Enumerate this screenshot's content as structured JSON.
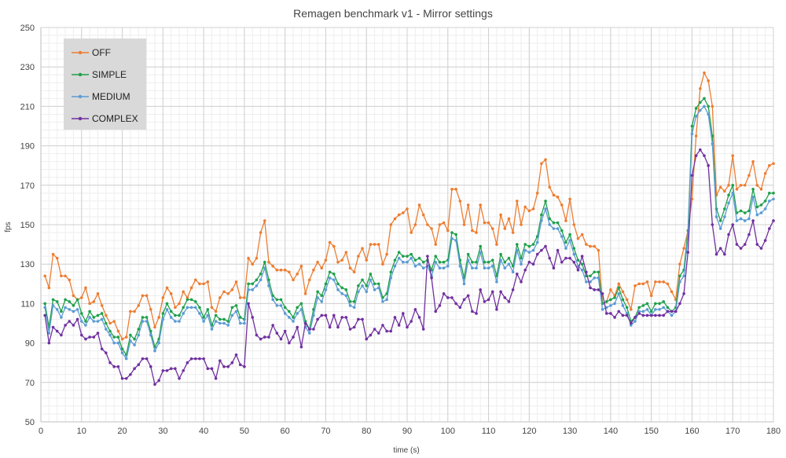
{
  "chart_data": {
    "type": "line",
    "title": "Remagen benchmark v1 - Mirror settings",
    "xlabel": "time (s)",
    "ylabel": "fps",
    "xlim": [
      0,
      180
    ],
    "ylim": [
      50,
      250
    ],
    "xticks": [
      0,
      10,
      20,
      30,
      40,
      50,
      60,
      70,
      80,
      90,
      100,
      110,
      120,
      130,
      140,
      150,
      160,
      170,
      180
    ],
    "yticks": [
      50,
      70,
      90,
      110,
      130,
      150,
      170,
      190,
      210,
      230,
      250
    ],
    "x": [
      1,
      2,
      3,
      4,
      5,
      6,
      7,
      8,
      9,
      10,
      11,
      12,
      13,
      14,
      15,
      16,
      17,
      18,
      19,
      20,
      21,
      22,
      23,
      24,
      25,
      26,
      27,
      28,
      29,
      30,
      31,
      32,
      33,
      34,
      35,
      36,
      37,
      38,
      39,
      40,
      41,
      42,
      43,
      44,
      45,
      46,
      47,
      48,
      49,
      50,
      51,
      52,
      53,
      54,
      55,
      56,
      57,
      58,
      59,
      60,
      61,
      62,
      63,
      64,
      65,
      66,
      67,
      68,
      69,
      70,
      71,
      72,
      73,
      74,
      75,
      76,
      77,
      78,
      79,
      80,
      81,
      82,
      83,
      84,
      85,
      86,
      87,
      88,
      89,
      90,
      91,
      92,
      93,
      94,
      95,
      96,
      97,
      98,
      99,
      100,
      101,
      102,
      103,
      104,
      105,
      106,
      107,
      108,
      109,
      110,
      111,
      112,
      113,
      114,
      115,
      116,
      117,
      118,
      119,
      120,
      121,
      122,
      123,
      124,
      125,
      126,
      127,
      128,
      129,
      130,
      131,
      132,
      133,
      134,
      135,
      136,
      137,
      138,
      139,
      140,
      141,
      142,
      143,
      144,
      145,
      146,
      147,
      148,
      149,
      150,
      151,
      152,
      153,
      154,
      155,
      156,
      157,
      158,
      159,
      160,
      161,
      162,
      163,
      164,
      165,
      166,
      167,
      168,
      169,
      170,
      171,
      172,
      173,
      174,
      175,
      176,
      177,
      178,
      179,
      180
    ],
    "series": [
      {
        "name": "OFF",
        "color": "#ED7D31",
        "values": [
          124,
          118,
          135,
          133,
          124,
          124,
          122,
          114,
          112,
          113,
          118,
          110,
          111,
          115,
          109,
          104,
          100,
          101,
          96,
          92,
          93,
          106,
          106,
          109,
          114,
          114,
          107,
          98,
          103,
          113,
          118,
          115,
          108,
          110,
          116,
          113,
          118,
          122,
          120,
          120,
          121,
          108,
          106,
          113,
          116,
          115,
          117,
          121,
          113,
          113,
          133,
          130,
          133,
          146,
          152,
          131,
          129,
          127,
          127,
          127,
          126,
          122,
          125,
          129,
          115,
          122,
          127,
          131,
          128,
          132,
          141,
          139,
          131,
          132,
          136,
          128,
          126,
          134,
          138,
          132,
          140,
          140,
          140,
          130,
          135,
          150,
          153,
          155,
          156,
          158,
          146,
          150,
          160,
          155,
          150,
          148,
          140,
          150,
          151,
          147,
          168,
          168,
          162,
          150,
          160,
          147,
          146,
          160,
          151,
          151,
          148,
          140,
          155,
          148,
          153,
          146,
          162,
          150,
          159,
          157,
          158,
          166,
          181,
          183,
          169,
          165,
          164,
          160,
          152,
          163,
          150,
          143,
          145,
          140,
          139,
          139,
          137,
          110,
          111,
          117,
          114,
          120,
          116,
          112,
          107,
          119,
          120,
          120,
          121,
          114,
          121,
          121,
          121,
          120,
          116,
          112,
          130,
          138,
          147,
          163,
          195,
          219,
          227,
          223,
          210,
          165,
          169,
          167,
          170,
          185,
          168,
          170,
          170,
          175,
          182,
          170,
          168,
          176,
          180,
          181
        ]
      },
      {
        "name": "SIMPLE",
        "color": "#1EA04A",
        "values": [
          110,
          98,
          112,
          111,
          106,
          112,
          111,
          109,
          112,
          105,
          101,
          106,
          103,
          104,
          105,
          100,
          96,
          93,
          93,
          87,
          84,
          94,
          92,
          97,
          103,
          103,
          96,
          88,
          92,
          105,
          110,
          106,
          104,
          104,
          108,
          112,
          112,
          111,
          108,
          103,
          107,
          99,
          104,
          102,
          102,
          101,
          108,
          109,
          103,
          102,
          120,
          120,
          122,
          125,
          131,
          122,
          114,
          112,
          112,
          108,
          106,
          103,
          108,
          110,
          101,
          97,
          107,
          116,
          114,
          120,
          126,
          125,
          120,
          118,
          117,
          111,
          111,
          119,
          122,
          119,
          125,
          120,
          120,
          113,
          115,
          126,
          132,
          136,
          134,
          134,
          135,
          132,
          133,
          131,
          132,
          127,
          134,
          131,
          131,
          132,
          146,
          145,
          132,
          123,
          135,
          131,
          131,
          139,
          131,
          131,
          132,
          124,
          135,
          131,
          133,
          129,
          140,
          133,
          140,
          139,
          140,
          144,
          155,
          162,
          153,
          151,
          151,
          147,
          141,
          145,
          138,
          132,
          130,
          124,
          124,
          126,
          126,
          110,
          111,
          112,
          113,
          118,
          112,
          108,
          101,
          103,
          108,
          109,
          110,
          106,
          110,
          110,
          111,
          108,
          106,
          108,
          124,
          127,
          147,
          200,
          209,
          212,
          214,
          210,
          195,
          158,
          152,
          158,
          165,
          170,
          156,
          157,
          156,
          157,
          168,
          159,
          160,
          162,
          166,
          166
        ]
      },
      {
        "name": "MEDIUM",
        "color": "#5B9BD5",
        "values": [
          108,
          95,
          109,
          107,
          103,
          108,
          107,
          106,
          107,
          101,
          99,
          103,
          101,
          101,
          102,
          97,
          94,
          90,
          90,
          85,
          82,
          91,
          89,
          94,
          101,
          101,
          94,
          86,
          90,
          102,
          107,
          103,
          101,
          101,
          105,
          108,
          108,
          108,
          105,
          101,
          104,
          97,
          101,
          100,
          100,
          99,
          104,
          106,
          100,
          100,
          117,
          117,
          119,
          122,
          128,
          119,
          112,
          109,
          109,
          105,
          103,
          101,
          105,
          107,
          98,
          95,
          104,
          113,
          111,
          117,
          123,
          122,
          117,
          115,
          114,
          109,
          108,
          116,
          119,
          116,
          122,
          117,
          118,
          111,
          112,
          123,
          129,
          133,
          131,
          131,
          133,
          129,
          130,
          128,
          129,
          124,
          131,
          128,
          128,
          129,
          143,
          142,
          129,
          120,
          132,
          128,
          128,
          136,
          128,
          128,
          129,
          121,
          132,
          128,
          130,
          126,
          137,
          130,
          137,
          136,
          137,
          141,
          152,
          158,
          150,
          148,
          148,
          144,
          138,
          142,
          135,
          129,
          127,
          121,
          121,
          123,
          123,
          107,
          108,
          109,
          110,
          115,
          109,
          105,
          99,
          101,
          106,
          106,
          107,
          104,
          107,
          107,
          108,
          106,
          104,
          106,
          121,
          124,
          144,
          196,
          205,
          208,
          210,
          206,
          191,
          154,
          148,
          154,
          161,
          166,
          152,
          153,
          152,
          153,
          164,
          155,
          156,
          158,
          162,
          163
        ]
      },
      {
        "name": "COMPLEX",
        "color": "#7030A0",
        "values": [
          104,
          90,
          98,
          96,
          94,
          99,
          101,
          99,
          102,
          94,
          92,
          93,
          93,
          95,
          87,
          85,
          80,
          78,
          78,
          72,
          72,
          74,
          77,
          79,
          82,
          82,
          78,
          69,
          71,
          76,
          76,
          77,
          77,
          72,
          76,
          80,
          82,
          82,
          82,
          82,
          77,
          77,
          72,
          81,
          78,
          78,
          80,
          84,
          79,
          78,
          110,
          103,
          94,
          92,
          93,
          93,
          99,
          95,
          92,
          96,
          90,
          93,
          98,
          88,
          100,
          97,
          97,
          102,
          104,
          104,
          98,
          104,
          98,
          103,
          103,
          97,
          98,
          102,
          102,
          92,
          94,
          97,
          95,
          99,
          96,
          96,
          103,
          99,
          105,
          98,
          101,
          107,
          103,
          97,
          134,
          123,
          106,
          109,
          115,
          113,
          113,
          110,
          108,
          112,
          114,
          106,
          105,
          117,
          111,
          112,
          116,
          107,
          116,
          113,
          111,
          117,
          125,
          121,
          127,
          131,
          130,
          135,
          137,
          139,
          133,
          128,
          137,
          131,
          133,
          133,
          131,
          127,
          134,
          126,
          118,
          117,
          117,
          115,
          105,
          105,
          103,
          106,
          104,
          104,
          100,
          103,
          105,
          104,
          104,
          104,
          104,
          104,
          104,
          106,
          106,
          106,
          110,
          115,
          136,
          175,
          185,
          188,
          185,
          180,
          150,
          135,
          138,
          135,
          145,
          150,
          140,
          138,
          140,
          145,
          152,
          140,
          138,
          142,
          148,
          152
        ]
      }
    ],
    "legend": {
      "position": "top-left",
      "entries": [
        "OFF",
        "SIMPLE",
        "MEDIUM",
        "COMPLEX"
      ]
    },
    "grid": true
  }
}
